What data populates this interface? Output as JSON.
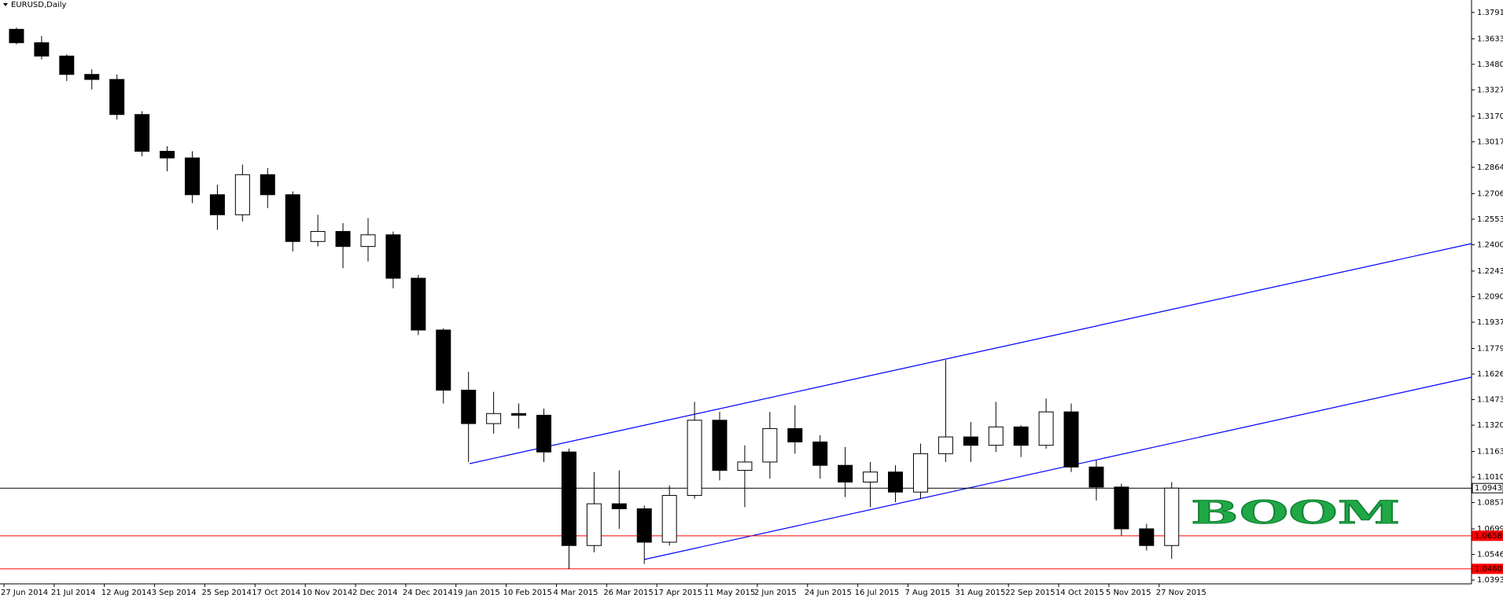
{
  "chart_data": {
    "type": "candlestick",
    "title": "EURUSD,Daily",
    "categories": [
      "27 Jun 2014",
      null,
      "21 Jul 2014",
      null,
      "12 Aug 2014",
      null,
      "3 Sep 2014",
      null,
      "25 Sep 2014",
      null,
      "17 Oct 2014",
      null,
      "10 Nov 2014",
      null,
      "2 Dec 2014",
      null,
      "24 Dec 2014",
      null,
      "19 Jan 2015",
      null,
      "10 Feb 2015",
      null,
      "4 Mar 2015",
      null,
      "26 Mar 2015",
      null,
      "17 Apr 2015",
      null,
      "11 May 2015",
      null,
      "2 Jun 2015",
      null,
      "24 Jun 2015",
      null,
      "16 Jul 2015",
      null,
      "7 Aug 2015",
      null,
      "31 Aug 2015",
      null,
      "22 Sep 2015",
      null,
      "14 Oct 2015",
      null,
      "5 Nov 2015",
      null,
      "27 Nov 2015"
    ],
    "open": [
      1.369,
      1.361,
      1.353,
      1.342,
      1.339,
      1.318,
      1.296,
      1.292,
      1.27,
      1.258,
      1.282,
      1.27,
      1.242,
      1.248,
      1.239,
      1.246,
      1.22,
      1.189,
      1.153,
      1.133,
      1.139,
      1.138,
      1.116,
      1.06,
      1.085,
      1.082,
      1.062,
      1.09,
      1.135,
      1.105,
      1.11,
      1.13,
      1.122,
      1.108,
      1.098,
      1.104,
      1.092,
      1.115,
      1.125,
      1.12,
      1.131,
      1.12,
      1.14,
      1.107,
      1.095,
      1.07,
      1.06
    ],
    "high": [
      1.37,
      1.365,
      1.354,
      1.345,
      1.342,
      1.32,
      1.299,
      1.296,
      1.276,
      1.288,
      1.286,
      1.272,
      1.258,
      1.253,
      1.256,
      1.248,
      1.222,
      1.19,
      1.164,
      1.152,
      1.145,
      1.142,
      1.118,
      1.104,
      1.105,
      1.084,
      1.096,
      1.146,
      1.14,
      1.12,
      1.14,
      1.144,
      1.126,
      1.119,
      1.11,
      1.108,
      1.121,
      1.171,
      1.134,
      1.146,
      1.132,
      1.148,
      1.145,
      1.111,
      1.097,
      1.073,
      1.098
    ],
    "low": [
      1.36,
      1.351,
      1.338,
      1.333,
      1.315,
      1.293,
      1.284,
      1.265,
      1.249,
      1.254,
      1.262,
      1.236,
      1.239,
      1.226,
      1.23,
      1.214,
      1.186,
      1.145,
      1.11,
      1.127,
      1.13,
      1.11,
      1.046,
      1.056,
      1.07,
      1.049,
      1.06,
      1.088,
      1.099,
      1.083,
      1.1,
      1.115,
      1.1,
      1.089,
      1.083,
      1.086,
      1.088,
      1.11,
      1.11,
      1.116,
      1.113,
      1.118,
      1.104,
      1.087,
      1.066,
      1.057,
      1.052
    ],
    "close": [
      1.361,
      1.353,
      1.342,
      1.339,
      1.318,
      1.296,
      1.292,
      1.27,
      1.258,
      1.282,
      1.27,
      1.242,
      1.248,
      1.239,
      1.246,
      1.22,
      1.189,
      1.153,
      1.133,
      1.139,
      1.138,
      1.116,
      1.06,
      1.085,
      1.082,
      1.062,
      1.09,
      1.135,
      1.105,
      1.11,
      1.13,
      1.122,
      1.108,
      1.098,
      1.104,
      1.092,
      1.115,
      1.125,
      1.12,
      1.131,
      1.12,
      1.14,
      1.107,
      1.095,
      1.07,
      1.06,
      1.09435
    ],
    "ylim": [
      1.03706,
      1.38655
    ],
    "yticks": [
      {
        "value": 1.3791,
        "label": "1.37910"
      },
      1.36335,
      1.34805,
      1.33275,
      {
        "value": 1.317,
        "label": "1.31700"
      },
      {
        "value": 1.3017,
        "label": "1.30170"
      },
      {
        "value": 1.2864,
        "label": "1.28640"
      },
      1.27065,
      1.25535,
      1.24005,
      {
        "value": 1.2243,
        "label": "1.22430"
      },
      {
        "value": 1.209,
        "label": "1.20900"
      },
      {
        "value": 1.1937,
        "label": "1.19370"
      },
      1.17795,
      1.16265,
      1.14735,
      1.13205,
      {
        "value": 1.1163,
        "label": "1.11630"
      },
      {
        "value": 1.101,
        "label": "1.10100"
      },
      1.08575,
      1.06995,
      1.05465,
      1.03935
    ],
    "hlines": [
      {
        "value": 1.09435,
        "color": "#000000"
      },
      {
        "value": 1.06582,
        "color": "#ff0000"
      },
      {
        "value": 1.04604,
        "color": "#ff0000"
      }
    ],
    "annotation": "BOOM"
  }
}
